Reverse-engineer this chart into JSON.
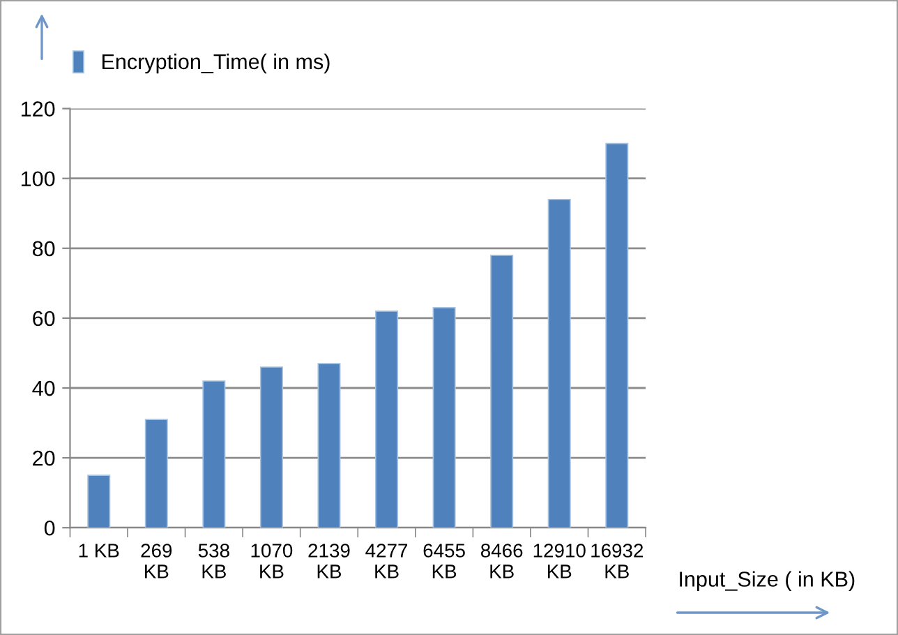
{
  "chart_data": {
    "type": "bar",
    "xlabel": "Input_Size ( in KB)",
    "categories": [
      "1 KB",
      "269 KB",
      "538 KB",
      "1070 KB",
      "2139 KB",
      "4277 KB",
      "6455 KB",
      "8466 KB",
      "12910 KB",
      "16932 KB"
    ],
    "series": [
      {
        "name": "Encryption_Time( in ms)",
        "color": "#4f81bd",
        "values": [
          15,
          31,
          42,
          46,
          47,
          62,
          63,
          78,
          94,
          110
        ]
      }
    ],
    "ylim": [
      0,
      120
    ],
    "yticks": [
      0,
      20,
      40,
      60,
      80,
      100,
      120
    ],
    "grid": "y",
    "legend": "top left"
  }
}
